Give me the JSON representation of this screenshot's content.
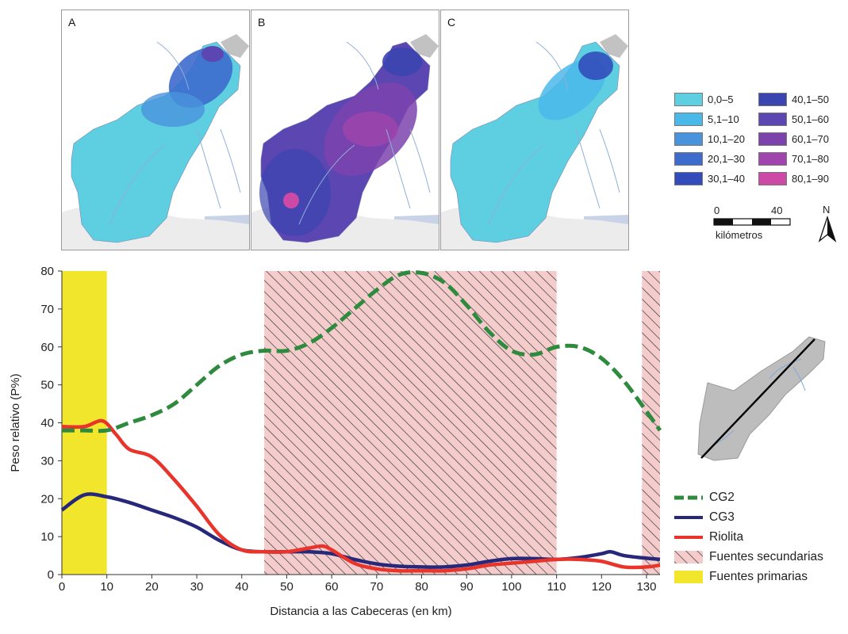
{
  "maps": {
    "panels": [
      {
        "letter": "A",
        "scheme": "low"
      },
      {
        "letter": "B",
        "scheme": "high"
      },
      {
        "letter": "C",
        "scheme": "low-mid"
      }
    ],
    "legend": [
      {
        "label": "0,0–5",
        "color": "#5ecfe0"
      },
      {
        "label": "5,1–10",
        "color": "#4bb8ea"
      },
      {
        "label": "10,1–20",
        "color": "#4893dc"
      },
      {
        "label": "20,1–30",
        "color": "#3d6ccd"
      },
      {
        "label": "30,1–40",
        "color": "#324dbb"
      },
      {
        "label": "40,1–50",
        "color": "#3b45b0"
      },
      {
        "label": "50,1–60",
        "color": "#5b46b2"
      },
      {
        "label": "60,1–70",
        "color": "#7d43ad"
      },
      {
        "label": "70,1–80",
        "color": "#a045ad"
      },
      {
        "label": "80,1–90",
        "color": "#cc4aa6"
      }
    ],
    "scale": {
      "start": "0",
      "end": "40",
      "unit": "kilómetros"
    },
    "north": "N"
  },
  "chart_data": {
    "type": "line",
    "xlabel": "Distancia a las Cabeceras (en km)",
    "ylabel": "Peso  relativo (P%)",
    "xlim": [
      0,
      133
    ],
    "ylim": [
      0,
      80
    ],
    "xticks": [
      0,
      10,
      20,
      30,
      40,
      50,
      60,
      70,
      80,
      90,
      100,
      110,
      120,
      130
    ],
    "yticks": [
      0,
      10,
      20,
      30,
      40,
      50,
      60,
      70,
      80
    ],
    "regions": [
      {
        "name": "Fuentes primarias",
        "x": [
          0,
          10
        ],
        "color": "#f2e62c",
        "pattern": "solid"
      },
      {
        "name": "Fuentes secundarias",
        "x": [
          45,
          110
        ],
        "color": "#f4cccc",
        "pattern": "hatch"
      },
      {
        "name": "Fuentes secundarias",
        "x": [
          129,
          133
        ],
        "color": "#f4cccc",
        "pattern": "hatch"
      }
    ],
    "series": [
      {
        "name": "CG2",
        "color": "#2e8b3e",
        "style": "dashed",
        "points": [
          [
            0,
            38
          ],
          [
            5,
            38
          ],
          [
            10,
            38
          ],
          [
            15,
            40
          ],
          [
            20,
            42
          ],
          [
            25,
            45
          ],
          [
            30,
            50
          ],
          [
            35,
            55
          ],
          [
            40,
            58
          ],
          [
            45,
            59
          ],
          [
            50,
            59
          ],
          [
            55,
            61
          ],
          [
            60,
            65
          ],
          [
            65,
            70
          ],
          [
            70,
            75
          ],
          [
            75,
            79
          ],
          [
            80,
            79.5
          ],
          [
            85,
            77
          ],
          [
            90,
            71
          ],
          [
            95,
            64
          ],
          [
            100,
            59
          ],
          [
            105,
            58
          ],
          [
            110,
            60
          ],
          [
            115,
            60
          ],
          [
            120,
            57
          ],
          [
            125,
            51
          ],
          [
            130,
            43
          ],
          [
            133,
            38
          ]
        ]
      },
      {
        "name": "CG3",
        "color": "#27287a",
        "style": "solid",
        "points": [
          [
            0,
            17
          ],
          [
            5,
            21
          ],
          [
            10,
            20.5
          ],
          [
            15,
            19
          ],
          [
            20,
            17
          ],
          [
            25,
            15
          ],
          [
            30,
            12.5
          ],
          [
            35,
            9
          ],
          [
            40,
            6.5
          ],
          [
            45,
            6
          ],
          [
            50,
            6
          ],
          [
            55,
            6
          ],
          [
            60,
            5.5
          ],
          [
            65,
            4
          ],
          [
            70,
            2.8
          ],
          [
            75,
            2.2
          ],
          [
            80,
            2
          ],
          [
            85,
            2
          ],
          [
            90,
            2.5
          ],
          [
            95,
            3.5
          ],
          [
            100,
            4.2
          ],
          [
            105,
            4.2
          ],
          [
            110,
            4
          ],
          [
            115,
            4.5
          ],
          [
            120,
            5.5
          ],
          [
            122,
            6
          ],
          [
            125,
            5
          ],
          [
            130,
            4.3
          ],
          [
            133,
            4
          ]
        ]
      },
      {
        "name": "Riolita",
        "color": "#e8342a",
        "style": "solid",
        "points": [
          [
            0,
            39
          ],
          [
            5,
            39
          ],
          [
            9,
            40.5
          ],
          [
            12,
            37
          ],
          [
            15,
            33
          ],
          [
            20,
            31
          ],
          [
            25,
            25
          ],
          [
            30,
            18
          ],
          [
            35,
            10.5
          ],
          [
            40,
            6.5
          ],
          [
            45,
            6
          ],
          [
            50,
            6
          ],
          [
            55,
            7
          ],
          [
            58,
            7.5
          ],
          [
            60,
            6.5
          ],
          [
            65,
            3
          ],
          [
            70,
            1.5
          ],
          [
            75,
            1
          ],
          [
            80,
            1
          ],
          [
            85,
            1
          ],
          [
            90,
            1.5
          ],
          [
            95,
            2.5
          ],
          [
            100,
            3
          ],
          [
            105,
            3.5
          ],
          [
            110,
            4
          ],
          [
            115,
            4
          ],
          [
            120,
            3.5
          ],
          [
            125,
            2
          ],
          [
            130,
            2
          ],
          [
            133,
            2.5
          ]
        ]
      }
    ],
    "legend": [
      "CG2",
      "CG3",
      "Riolita",
      "Fuentes secundarias",
      "Fuentes primarias"
    ]
  }
}
